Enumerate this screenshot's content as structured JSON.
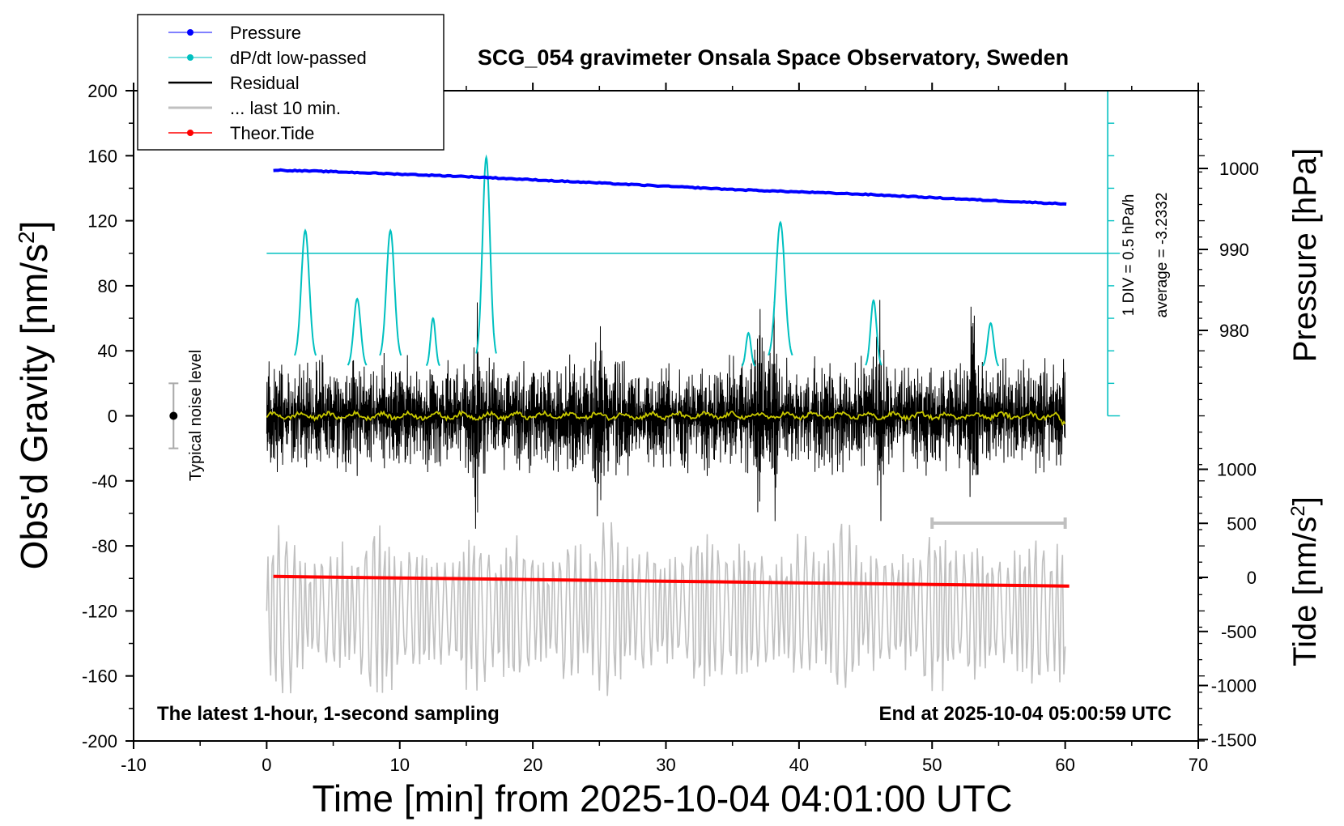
{
  "chart_data": {
    "type": "line",
    "title": "SCG_054 gravimeter Onsala Space Observatory, Sweden",
    "xlabel": "Time [min] from 2025-10-04 04:01:00 UTC",
    "ylabel": "Obs'd Gravity [nm/s",
    "ylabel_sup": "2",
    "ylabel_end": "]",
    "y2label": "Pressure [hPa]",
    "y3label": "Tide [nm/s",
    "y3label_sup": "2",
    "y3label_end": "]",
    "xlim": [
      -10,
      70
    ],
    "ylim": [
      -200,
      200
    ],
    "x_ticks": [
      "-10",
      "0",
      "10",
      "20",
      "30",
      "40",
      "50",
      "60",
      "70"
    ],
    "y_ticks": [
      "200",
      "160",
      "120",
      "80",
      "40",
      "0",
      "-40",
      "-80",
      "-120",
      "-160",
      "-200"
    ],
    "pressure_ticks": [
      "1000",
      "990",
      "980"
    ],
    "tide_ticks": [
      "1000",
      "500",
      "0",
      "-500",
      "-1000",
      "-1500"
    ],
    "grid": false,
    "legend_position": "top-left",
    "legend": [
      "Pressure",
      "dP/dt low-passed",
      "Residual",
      "... last 10 min.",
      "Theor.Tide"
    ],
    "noise_label": "Typical noise level",
    "dpdt_scale_note": "1 DIV = 0.5 hPa/h",
    "dpdt_average_note": "average = -3.2332",
    "note_left": "The latest 1-hour, 1-second sampling",
    "note_right": "End at 2025-10-04 05:00:59 UTC",
    "series": [
      {
        "name": "Pressure",
        "color": "#0000ff",
        "unit": "hPa",
        "x": [
          0.5,
          5,
          10,
          15,
          20,
          25,
          30,
          35,
          40,
          45,
          50,
          55,
          60.3
        ],
        "y": [
          999.8,
          999.6,
          999.3,
          999.0,
          998.6,
          998.2,
          997.8,
          997.4,
          997.1,
          996.8,
          996.4,
          996.0,
          995.6
        ]
      },
      {
        "name": "dP/dt low-passed",
        "color": "#00c0c0",
        "unit": "nm/s2-equivalent",
        "peaks": [
          {
            "center": 2.9,
            "height": 114,
            "width": 0.8
          },
          {
            "center": 6.8,
            "height": 72,
            "width": 0.7
          },
          {
            "center": 9.3,
            "height": 114,
            "width": 0.8
          },
          {
            "center": 12.5,
            "height": 60,
            "width": 0.5
          },
          {
            "center": 16.5,
            "height": 159,
            "width": 0.75
          },
          {
            "center": 36.2,
            "height": 51,
            "width": 0.5
          },
          {
            "center": 38.6,
            "height": 119,
            "width": 0.9
          },
          {
            "center": 45.6,
            "height": 71,
            "width": 0.6
          },
          {
            "center": 54.4,
            "height": 57,
            "width": 0.6
          }
        ]
      },
      {
        "name": "Residual",
        "color": "#000000",
        "amplitude_nm_s2": 40,
        "x_range": [
          0,
          60
        ]
      },
      {
        "name": "... last 10 min.",
        "color": "#c0c0c0",
        "amplitude_nm_s2": 60,
        "x_range": [
          0,
          60
        ]
      },
      {
        "name": "Theor.Tide",
        "color": "#ff0000",
        "unit": "nm/s2",
        "x": [
          0.5,
          10,
          20,
          30,
          40,
          50,
          60.3
        ],
        "y": [
          9,
          -5,
          -20,
          -35,
          -50,
          -65,
          -80
        ]
      }
    ]
  }
}
